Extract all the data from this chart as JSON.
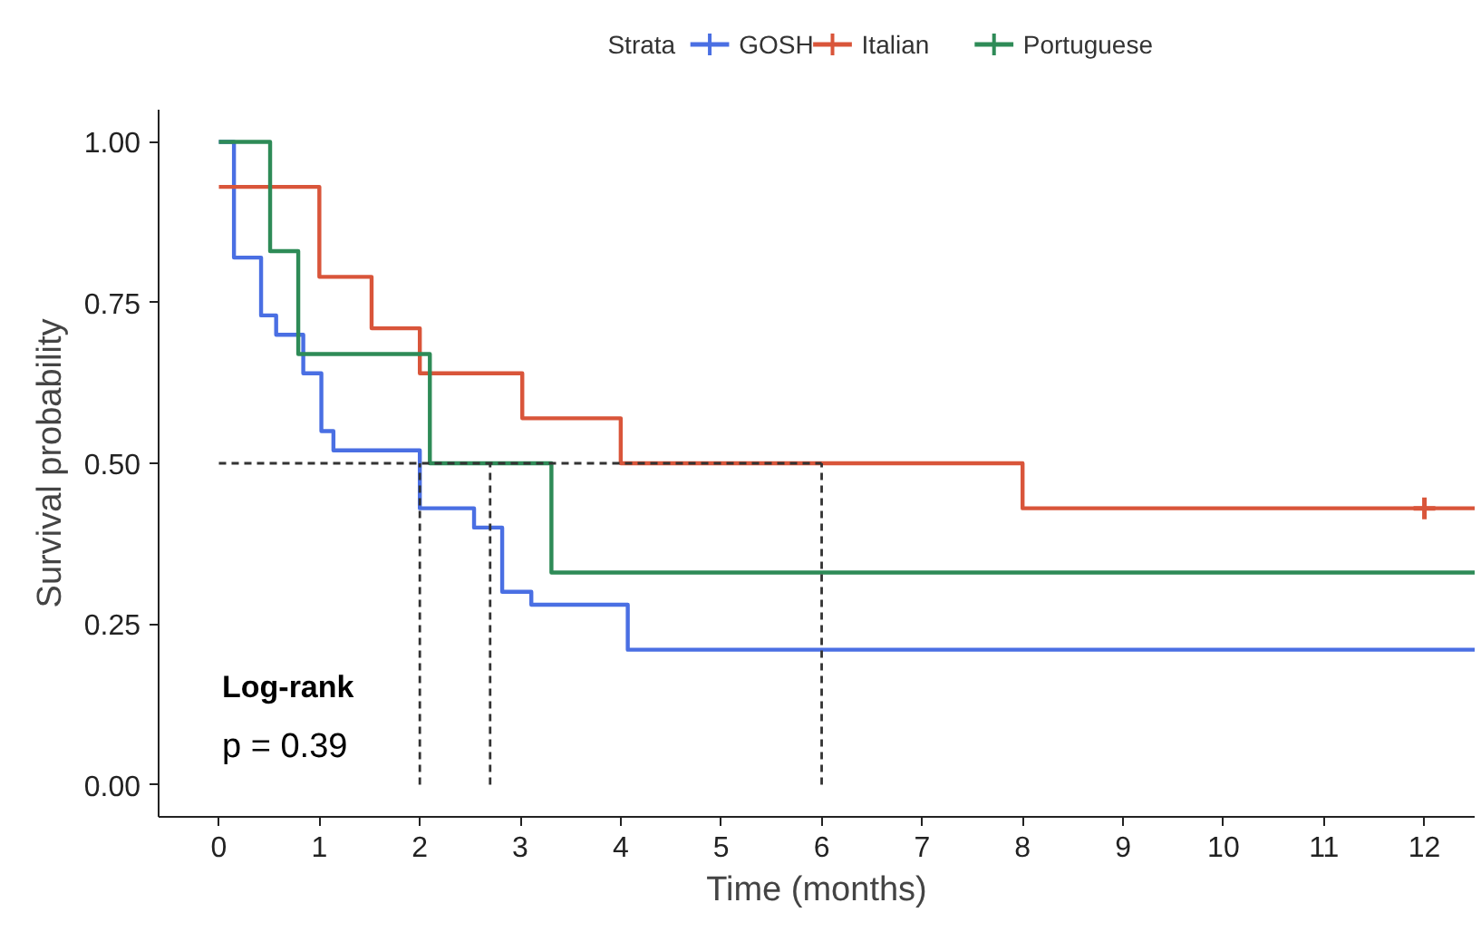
{
  "chart_data": {
    "type": "step",
    "xlabel": "Time (months)",
    "ylabel": "Survival probability",
    "legend_title": "Strata",
    "legend": "top",
    "grid": false,
    "xlim": [
      -0.6,
      12.5
    ],
    "ylim": [
      -0.05,
      1.05
    ],
    "xticks": [
      0,
      1,
      2,
      3,
      4,
      5,
      6,
      7,
      8,
      9,
      10,
      11,
      12
    ],
    "yticks": [
      {
        "value": 0,
        "label": "0.00"
      },
      {
        "value": 0.25,
        "label": "0.25"
      },
      {
        "value": 0.5,
        "label": "0.50"
      },
      {
        "value": 0.75,
        "label": "0.75"
      },
      {
        "value": 1,
        "label": "1.00"
      }
    ],
    "annotations": [
      "Log-rank",
      "p = 0.39"
    ],
    "series": [
      {
        "name": "GOSH",
        "color": "#4a6fe3",
        "x": [
          0,
          0.15,
          0.42,
          0.57,
          0.84,
          1.02,
          1.14,
          2.0,
          2.54,
          2.82,
          3.11,
          4.07,
          12.5
        ],
        "values": [
          1.0,
          0.82,
          0.73,
          0.7,
          0.64,
          0.55,
          0.52,
          0.43,
          0.4,
          0.3,
          0.28,
          0.21,
          0.21
        ]
      },
      {
        "name": "Italian",
        "color": "#d9553a",
        "x": [
          0,
          1.0,
          1.52,
          2.0,
          3.02,
          4.0,
          8.0,
          12.5
        ],
        "values": [
          0.93,
          0.79,
          0.71,
          0.64,
          0.57,
          0.5,
          0.43,
          0.43
        ]
      },
      {
        "name": "Portuguese",
        "color": "#2e8b57",
        "x": [
          0,
          0.51,
          0.79,
          2.1,
          3.31,
          12.5
        ],
        "values": [
          1.0,
          0.83,
          0.67,
          0.5,
          0.33,
          0.33
        ]
      },
      {
        "type": "scatter",
        "marker": "cross",
        "color": "#d9553a",
        "x": [
          12
        ],
        "values": [
          0.43
        ]
      },
      {
        "type": "line",
        "line_style": "dashed",
        "color": "#333333",
        "x": [
          0,
          6
        ],
        "values": [
          0.5,
          0.5
        ]
      },
      {
        "type": "line",
        "line_style": "dashed",
        "color": "#333333",
        "x": [
          2,
          2
        ],
        "values": [
          0,
          0.5
        ]
      },
      {
        "type": "line",
        "line_style": "dashed",
        "color": "#333333",
        "x": [
          2.7,
          2.7
        ],
        "values": [
          0,
          0.5
        ]
      },
      {
        "type": "line",
        "line_style": "dashed",
        "color": "#333333",
        "x": [
          6,
          6
        ],
        "values": [
          0,
          0.5
        ]
      }
    ]
  }
}
